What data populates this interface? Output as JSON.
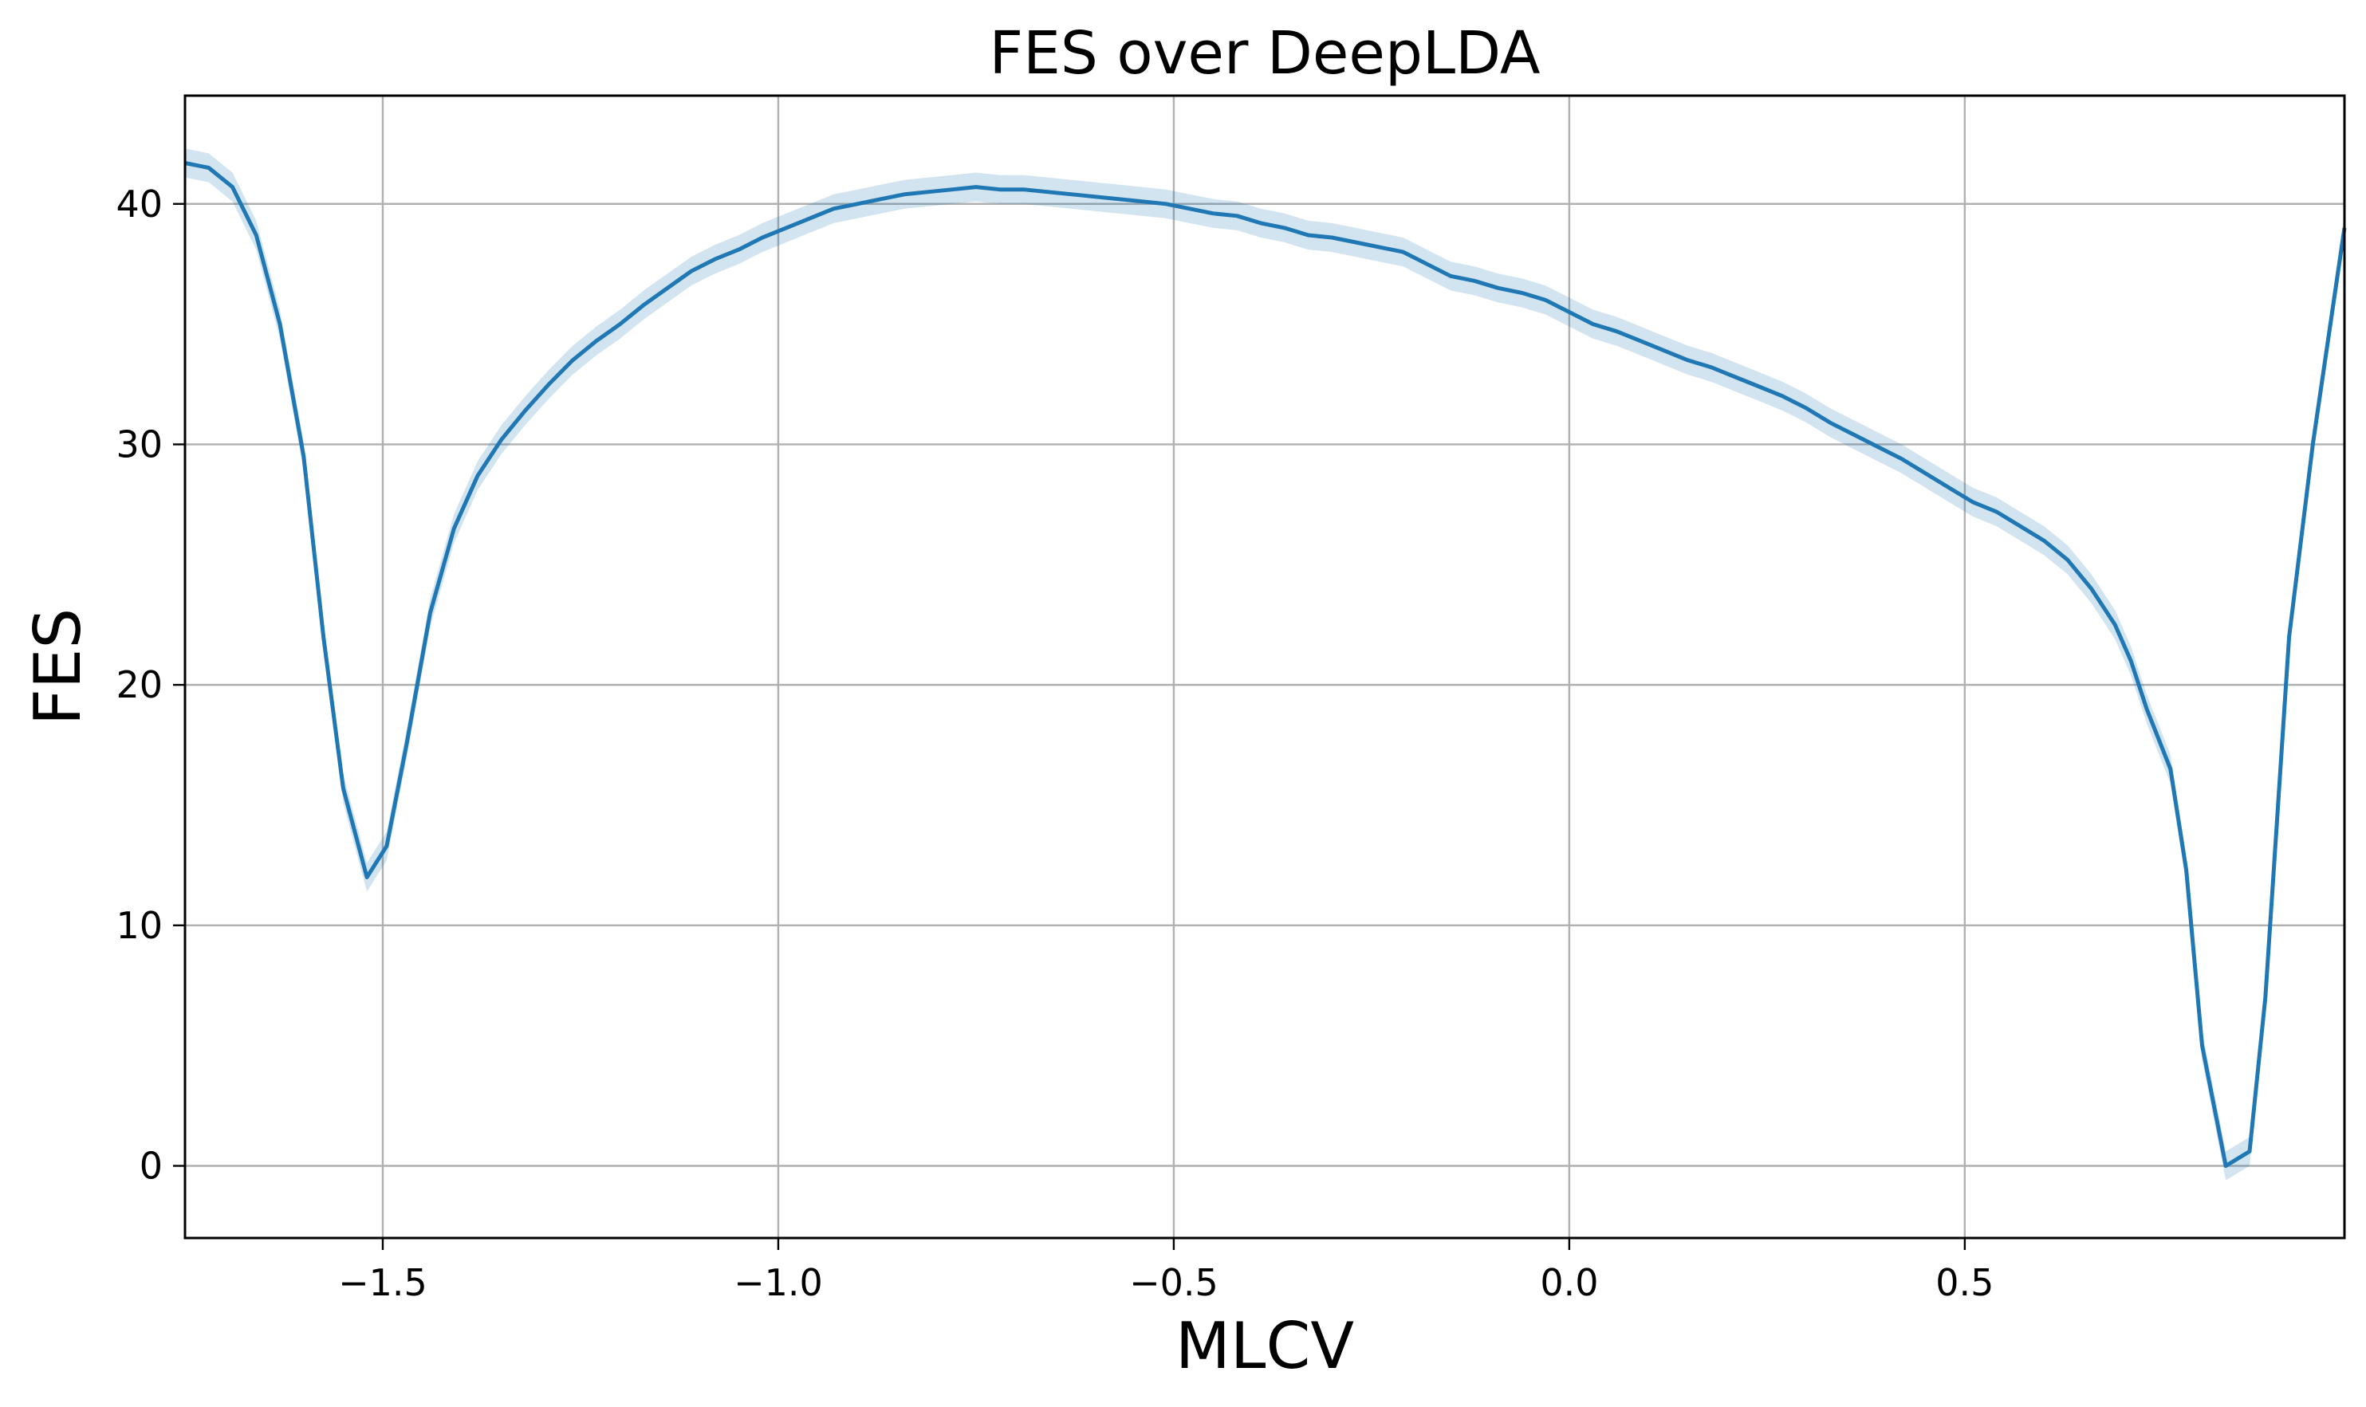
{
  "chart_data": {
    "type": "line",
    "title": "FES over DeepLDA",
    "xlabel": "MLCV",
    "ylabel": "FES",
    "xlim": [
      -1.75,
      0.98
    ],
    "ylim": [
      -3,
      44.5
    ],
    "grid": true,
    "xticks": [
      -1.5,
      -1.0,
      -0.5,
      0.0,
      0.5
    ],
    "xtick_labels": [
      "−1.5",
      "−1.0",
      "−0.5",
      "0.0",
      "0.5"
    ],
    "yticks": [
      0,
      10,
      20,
      30,
      40
    ],
    "ytick_labels": [
      "0",
      "10",
      "20",
      "30",
      "40"
    ],
    "colors": {
      "line": "#1f77b4",
      "band": "#1f77b4"
    },
    "band_opacity": 0.2,
    "band_width": 0.6,
    "series": [
      {
        "x": [
          -1.75,
          -1.72,
          -1.69,
          -1.66,
          -1.63,
          -1.6,
          -1.575,
          -1.55,
          -1.52,
          -1.495,
          -1.47,
          -1.44,
          -1.41,
          -1.38,
          -1.35,
          -1.32,
          -1.29,
          -1.26,
          -1.23,
          -1.2,
          -1.17,
          -1.14,
          -1.11,
          -1.08,
          -1.05,
          -1.02,
          -0.99,
          -0.96,
          -0.93,
          -0.9,
          -0.87,
          -0.84,
          -0.81,
          -0.78,
          -0.75,
          -0.72,
          -0.69,
          -0.66,
          -0.63,
          -0.6,
          -0.57,
          -0.54,
          -0.51,
          -0.48,
          -0.45,
          -0.42,
          -0.39,
          -0.36,
          -0.33,
          -0.3,
          -0.27,
          -0.24,
          -0.21,
          -0.18,
          -0.15,
          -0.12,
          -0.09,
          -0.06,
          -0.03,
          0.0,
          0.03,
          0.06,
          0.09,
          0.12,
          0.15,
          0.18,
          0.21,
          0.24,
          0.27,
          0.3,
          0.33,
          0.36,
          0.39,
          0.42,
          0.45,
          0.48,
          0.51,
          0.54,
          0.57,
          0.6,
          0.63,
          0.66,
          0.69,
          0.71,
          0.73,
          0.76,
          0.78,
          0.8,
          0.83,
          0.86,
          0.88,
          0.91,
          0.94,
          0.98
        ],
        "y": [
          41.7,
          41.5,
          40.7,
          38.7,
          35.0,
          29.5,
          22.0,
          15.7,
          12.0,
          13.3,
          17.5,
          23.0,
          26.5,
          28.7,
          30.2,
          31.4,
          32.5,
          33.5,
          34.3,
          35.0,
          35.8,
          36.5,
          37.2,
          37.7,
          38.1,
          38.6,
          39.0,
          39.4,
          39.8,
          40.0,
          40.2,
          40.4,
          40.5,
          40.6,
          40.7,
          40.6,
          40.6,
          40.5,
          40.4,
          40.3,
          40.2,
          40.1,
          40.0,
          39.8,
          39.6,
          39.5,
          39.2,
          39.0,
          38.7,
          38.6,
          38.4,
          38.2,
          38.0,
          37.5,
          37.0,
          36.8,
          36.5,
          36.3,
          36.0,
          35.5,
          35.0,
          34.7,
          34.3,
          33.9,
          33.5,
          33.2,
          32.8,
          32.4,
          32.0,
          31.5,
          30.9,
          30.4,
          29.9,
          29.4,
          28.8,
          28.2,
          27.6,
          27.2,
          26.6,
          26.0,
          25.2,
          24.0,
          22.5,
          21.0,
          19.0,
          16.5,
          12.3,
          5.0,
          0.0,
          0.6,
          7.0,
          22.0,
          30.0,
          39.0
        ]
      }
    ]
  }
}
